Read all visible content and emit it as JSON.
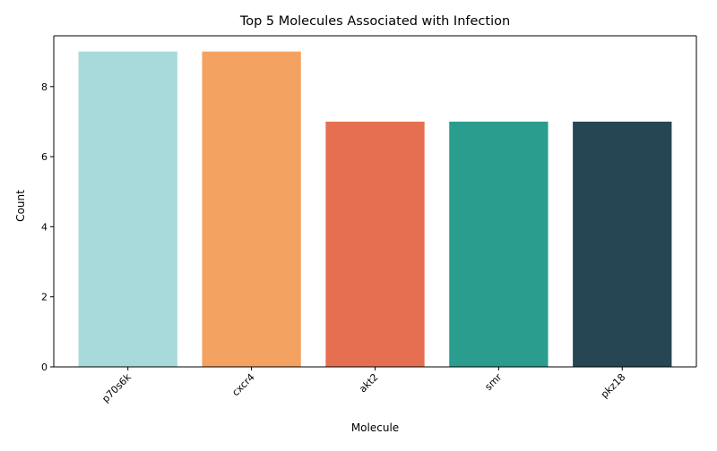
{
  "chart_data": {
    "type": "bar",
    "title": "Top 5 Molecules Associated with Infection",
    "xlabel": "Molecule",
    "ylabel": "Count",
    "categories": [
      "p70s6k",
      "cxcr4",
      "akt2",
      "smr",
      "pkz18"
    ],
    "values": [
      9,
      9,
      7,
      7,
      7
    ],
    "colors": [
      "#a8dadc",
      "#f4a261",
      "#e76f51",
      "#2a9d8f",
      "#264653"
    ],
    "ylim": [
      0,
      9.45
    ],
    "yticks": [
      "0",
      "2",
      "4",
      "6",
      "8"
    ],
    "grid": false,
    "legend": "none"
  }
}
